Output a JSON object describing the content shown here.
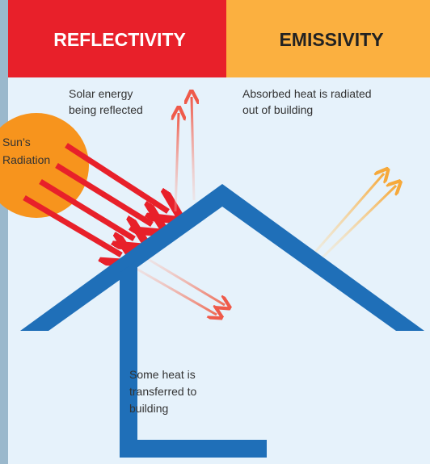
{
  "header": {
    "left": "REFLECTIVITY",
    "right": "EMISSIVITY"
  },
  "labels": {
    "sun": [
      "Sun’s",
      "Radiation"
    ],
    "reflected": [
      "Solar energy",
      "being reflected"
    ],
    "radiated": [
      "Absorbed heat is radiated",
      "out of building"
    ],
    "transferred": [
      "Some heat is",
      "transferred to",
      "building"
    ]
  }
}
